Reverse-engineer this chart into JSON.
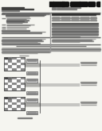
{
  "bg_color": "#f5f5f0",
  "barcode_color": "#111111",
  "header_line_color": "#666666",
  "text_dark": "#222222",
  "text_mid": "#555555",
  "text_light": "#888888",
  "line_color": "#333333",
  "box_fill": "#d8d8d8",
  "box_edge": "#444444",
  "grid_dark": "#888888",
  "grid_light": "#cccccc",
  "sa_fill": "#eeeeee",
  "sa_edge": "#333333",
  "divider_color": "#999999"
}
